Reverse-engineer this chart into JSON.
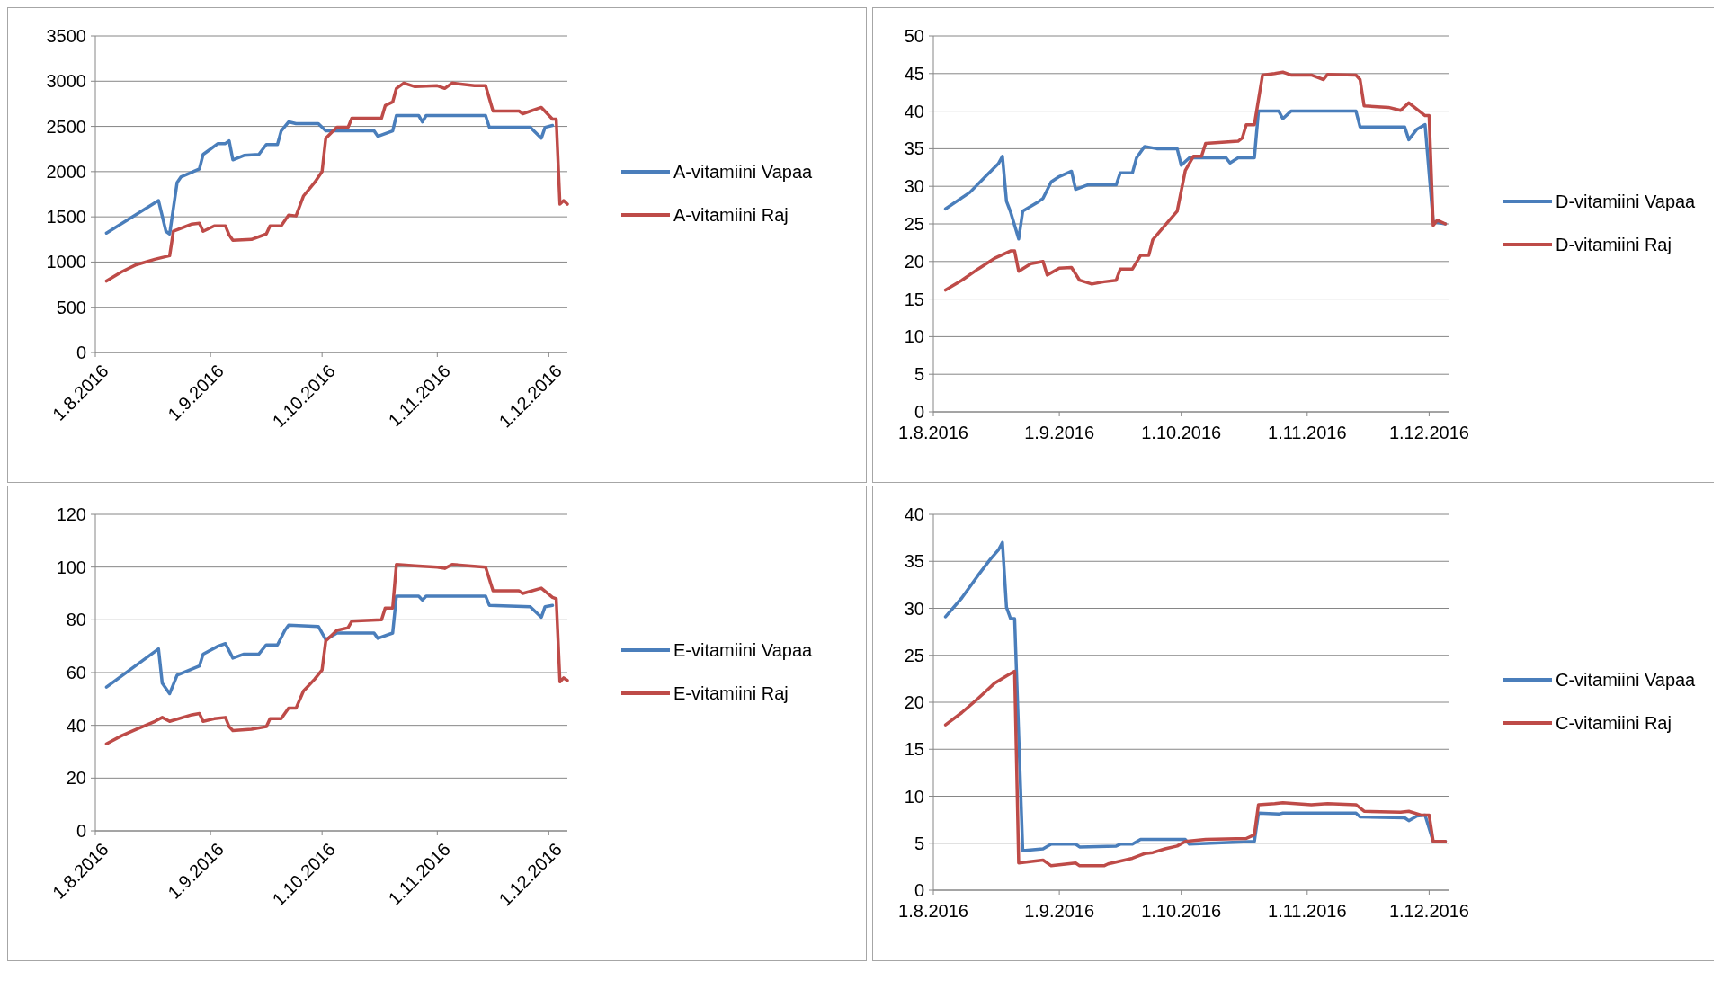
{
  "chart_data": [
    {
      "type": "line",
      "xlim": [
        "2016-08-01",
        "2016-12-06"
      ],
      "xticks": [
        {
          "value": "2016-08-01",
          "label": "1.8.2016"
        },
        {
          "value": "2016-09-01",
          "label": "1.9.2016"
        },
        {
          "value": "2016-10-01",
          "label": "1.10.2016"
        },
        {
          "value": "2016-11-01",
          "label": "1.11.2016"
        },
        {
          "value": "2016-12-01",
          "label": "1.12.2016"
        }
      ],
      "ylim": [
        0,
        3500
      ],
      "yticks": [
        0,
        500,
        1000,
        1500,
        2000,
        2500,
        3000,
        3500
      ],
      "grid": "y",
      "legend": "right",
      "series": [
        {
          "name": "A-vitamiini Vapaa",
          "color": "#4a7ebb",
          "x": [
            "2016-08-04",
            "2016-08-18",
            "2016-08-20",
            "2016-08-21",
            "2016-08-23",
            "2016-08-24",
            "2016-08-29",
            "2016-08-30",
            "2016-09-01",
            "2016-09-03",
            "2016-09-05",
            "2016-09-06",
            "2016-09-07",
            "2016-09-10",
            "2016-09-14",
            "2016-09-16",
            "2016-09-19",
            "2016-09-20",
            "2016-09-22",
            "2016-09-24",
            "2016-09-30",
            "2016-10-02",
            "2016-10-11",
            "2016-10-15",
            "2016-10-16",
            "2016-10-20",
            "2016-10-21",
            "2016-10-27",
            "2016-10-28",
            "2016-10-29",
            "2016-11-14",
            "2016-11-15",
            "2016-11-26",
            "2016-11-29",
            "2016-11-30",
            "2016-12-02"
          ],
          "values": [
            1320,
            1680,
            1340,
            1310,
            1880,
            1940,
            2030,
            2190,
            2250,
            2310,
            2310,
            2340,
            2130,
            2180,
            2190,
            2300,
            2300,
            2450,
            2550,
            2530,
            2530,
            2450,
            2450,
            2450,
            2390,
            2450,
            2620,
            2620,
            2550,
            2620,
            2620,
            2490,
            2490,
            2370,
            2490,
            2510
          ]
        },
        {
          "name": "A-vitamiini Raj",
          "color": "#be4b48",
          "x": [
            "2016-08-04",
            "2016-08-08",
            "2016-08-12",
            "2016-08-17",
            "2016-08-21",
            "2016-08-22",
            "2016-08-27",
            "2016-08-29",
            "2016-08-30",
            "2016-09-02",
            "2016-09-05",
            "2016-09-06",
            "2016-09-07",
            "2016-09-12",
            "2016-09-16",
            "2016-09-17",
            "2016-09-20",
            "2016-09-22",
            "2016-09-24",
            "2016-09-26",
            "2016-09-29",
            "2016-10-01",
            "2016-10-02",
            "2016-10-05",
            "2016-10-08",
            "2016-10-09",
            "2016-10-17",
            "2016-10-18",
            "2016-10-20",
            "2016-10-21",
            "2016-10-23",
            "2016-10-26",
            "2016-11-01",
            "2016-11-03",
            "2016-11-05",
            "2016-11-11",
            "2016-11-14",
            "2016-11-16",
            "2016-11-23",
            "2016-11-24",
            "2016-11-29",
            "2016-12-02",
            "2016-12-03",
            "2016-12-04",
            "2016-12-05",
            "2016-12-06"
          ],
          "values": [
            790,
            890,
            970,
            1030,
            1070,
            1340,
            1420,
            1430,
            1340,
            1400,
            1400,
            1300,
            1240,
            1250,
            1310,
            1400,
            1400,
            1520,
            1510,
            1730,
            1880,
            2000,
            2370,
            2490,
            2490,
            2590,
            2590,
            2730,
            2770,
            2920,
            2980,
            2940,
            2950,
            2920,
            2980,
            2950,
            2950,
            2670,
            2670,
            2640,
            2710,
            2580,
            2580,
            1640,
            1680,
            1640
          ]
        }
      ]
    },
    {
      "type": "line",
      "xlim": [
        "2016-08-01",
        "2016-12-06"
      ],
      "xticks": [
        {
          "value": "2016-08-01",
          "label": "1.8.2016"
        },
        {
          "value": "2016-09-01",
          "label": "1.9.2016"
        },
        {
          "value": "2016-10-01",
          "label": "1.10.2016"
        },
        {
          "value": "2016-11-01",
          "label": "1.11.2016"
        },
        {
          "value": "2016-12-01",
          "label": "1.12.2016"
        }
      ],
      "ylim": [
        0,
        50
      ],
      "yticks": [
        0,
        5,
        10,
        15,
        20,
        25,
        30,
        35,
        40,
        45,
        50
      ],
      "grid": "y",
      "legend": "right",
      "series": [
        {
          "name": "D-vitamiini Vapaa",
          "color": "#4a7ebb",
          "x": [
            "2016-08-04",
            "2016-08-10",
            "2016-08-14",
            "2016-08-17",
            "2016-08-18",
            "2016-08-19",
            "2016-08-20",
            "2016-08-22",
            "2016-08-23",
            "2016-08-27",
            "2016-08-28",
            "2016-08-30",
            "2016-09-01",
            "2016-09-04",
            "2016-09-05",
            "2016-09-08",
            "2016-09-15",
            "2016-09-16",
            "2016-09-19",
            "2016-09-20",
            "2016-09-22",
            "2016-09-25",
            "2016-09-30",
            "2016-10-01",
            "2016-10-03",
            "2016-10-12",
            "2016-10-13",
            "2016-10-15",
            "2016-10-19",
            "2016-10-20",
            "2016-10-25",
            "2016-10-26",
            "2016-10-28",
            "2016-11-13",
            "2016-11-14",
            "2016-11-25",
            "2016-11-26",
            "2016-11-28",
            "2016-11-30",
            "2016-12-02",
            "2016-12-05"
          ],
          "values": [
            27,
            29.2,
            31.4,
            33,
            34,
            28,
            26.6,
            23,
            26.7,
            28,
            28.4,
            30.6,
            31.3,
            32,
            29.6,
            30.2,
            30.2,
            31.8,
            31.8,
            33.8,
            35.3,
            35,
            35,
            32.8,
            33.8,
            33.8,
            33.1,
            33.8,
            33.8,
            40,
            40,
            39,
            40,
            40,
            37.9,
            37.9,
            36.2,
            37.6,
            38.2,
            25.3,
            25
          ]
        },
        {
          "name": "D-vitamiini Raj",
          "color": "#be4b48",
          "x": [
            "2016-08-04",
            "2016-08-08",
            "2016-08-12",
            "2016-08-16",
            "2016-08-20",
            "2016-08-21",
            "2016-08-22",
            "2016-08-25",
            "2016-08-28",
            "2016-08-29",
            "2016-09-01",
            "2016-09-04",
            "2016-09-06",
            "2016-09-09",
            "2016-09-12",
            "2016-09-15",
            "2016-09-16",
            "2016-09-19",
            "2016-09-21",
            "2016-09-23",
            "2016-09-24",
            "2016-09-27",
            "2016-09-30",
            "2016-10-02",
            "2016-10-04",
            "2016-10-06",
            "2016-10-07",
            "2016-10-15",
            "2016-10-16",
            "2016-10-17",
            "2016-10-19",
            "2016-10-21",
            "2016-10-24",
            "2016-10-26",
            "2016-10-28",
            "2016-11-02",
            "2016-11-05",
            "2016-11-06",
            "2016-11-13",
            "2016-11-14",
            "2016-11-15",
            "2016-11-21",
            "2016-11-24",
            "2016-11-26",
            "2016-11-30",
            "2016-12-01",
            "2016-12-02",
            "2016-12-03",
            "2016-12-05"
          ],
          "values": [
            16.2,
            17.5,
            19,
            20.4,
            21.4,
            21.4,
            18.7,
            19.7,
            20,
            18.2,
            19.1,
            19.2,
            17.5,
            17,
            17.3,
            17.5,
            19,
            19,
            20.8,
            20.8,
            22.9,
            24.8,
            26.7,
            32.1,
            34,
            34,
            35.7,
            36,
            36.4,
            38.2,
            38.2,
            44.8,
            45,
            45.2,
            44.8,
            44.8,
            44.2,
            44.9,
            44.8,
            44.2,
            40.7,
            40.5,
            40.1,
            41.1,
            39.4,
            39.4,
            24.8,
            25.5,
            25
          ]
        }
      ]
    },
    {
      "type": "line",
      "xlim": [
        "2016-08-01",
        "2016-12-06"
      ],
      "xticks": [
        {
          "value": "2016-08-01",
          "label": "1.8.2016"
        },
        {
          "value": "2016-09-01",
          "label": "1.9.2016"
        },
        {
          "value": "2016-10-01",
          "label": "1.10.2016"
        },
        {
          "value": "2016-11-01",
          "label": "1.11.2016"
        },
        {
          "value": "2016-12-01",
          "label": "1.12.2016"
        }
      ],
      "ylim": [
        0,
        120
      ],
      "yticks": [
        0,
        20,
        40,
        60,
        80,
        100,
        120
      ],
      "grid": "y",
      "legend": "right",
      "series": [
        {
          "name": "E-vitamiini Vapaa",
          "color": "#4a7ebb",
          "x": [
            "2016-08-04",
            "2016-08-18",
            "2016-08-19",
            "2016-08-21",
            "2016-08-23",
            "2016-08-29",
            "2016-08-30",
            "2016-09-03",
            "2016-09-05",
            "2016-09-07",
            "2016-09-10",
            "2016-09-14",
            "2016-09-16",
            "2016-09-19",
            "2016-09-21",
            "2016-09-22",
            "2016-09-30",
            "2016-10-02",
            "2016-10-05",
            "2016-10-15",
            "2016-10-16",
            "2016-10-20",
            "2016-10-21",
            "2016-10-27",
            "2016-10-28",
            "2016-10-29",
            "2016-11-14",
            "2016-11-15",
            "2016-11-26",
            "2016-11-29",
            "2016-11-30",
            "2016-12-02"
          ],
          "values": [
            54.5,
            69,
            56,
            52,
            59,
            62.5,
            67,
            70,
            71,
            65.5,
            67,
            67,
            70.5,
            70.5,
            76,
            78,
            77.5,
            72.5,
            75,
            75,
            73,
            75,
            89,
            89,
            87.5,
            89,
            89,
            85.5,
            85,
            81,
            85,
            85.5
          ]
        },
        {
          "name": "E-vitamiini Raj",
          "color": "#be4b48",
          "x": [
            "2016-08-04",
            "2016-08-08",
            "2016-08-12",
            "2016-08-17",
            "2016-08-19",
            "2016-08-21",
            "2016-08-27",
            "2016-08-29",
            "2016-08-30",
            "2016-09-02",
            "2016-09-05",
            "2016-09-06",
            "2016-09-07",
            "2016-09-12",
            "2016-09-16",
            "2016-09-17",
            "2016-09-20",
            "2016-09-22",
            "2016-09-24",
            "2016-09-26",
            "2016-09-29",
            "2016-10-01",
            "2016-10-02",
            "2016-10-05",
            "2016-10-08",
            "2016-10-09",
            "2016-10-17",
            "2016-10-18",
            "2016-10-20",
            "2016-10-21",
            "2016-10-26",
            "2016-11-01",
            "2016-11-03",
            "2016-11-05",
            "2016-11-14",
            "2016-11-16",
            "2016-11-23",
            "2016-11-24",
            "2016-11-29",
            "2016-12-02",
            "2016-12-03",
            "2016-12-04",
            "2016-12-05",
            "2016-12-06"
          ],
          "values": [
            33,
            36,
            38.5,
            41.5,
            43,
            41.5,
            44,
            44.5,
            41.5,
            42.5,
            43,
            39.5,
            38,
            38.5,
            39.5,
            42.5,
            42.5,
            46.5,
            46.5,
            53,
            57.5,
            61,
            72,
            76,
            77,
            79.5,
            80,
            84.5,
            84.5,
            101,
            100.5,
            100,
            99.5,
            101,
            100,
            91,
            91,
            90,
            92,
            88.5,
            88,
            56.5,
            58,
            57
          ]
        }
      ]
    },
    {
      "type": "line",
      "xlim": [
        "2016-08-01",
        "2016-12-06"
      ],
      "xticks": [
        {
          "value": "2016-08-01",
          "label": "1.8.2016"
        },
        {
          "value": "2016-09-01",
          "label": "1.9.2016"
        },
        {
          "value": "2016-10-01",
          "label": "1.10.2016"
        },
        {
          "value": "2016-11-01",
          "label": "1.11.2016"
        },
        {
          "value": "2016-12-01",
          "label": "1.12.2016"
        }
      ],
      "ylim": [
        0,
        40
      ],
      "yticks": [
        0,
        5,
        10,
        15,
        20,
        25,
        30,
        35,
        40
      ],
      "grid": "y",
      "legend": "right",
      "series": [
        {
          "name": "C-vitamiini Vapaa",
          "color": "#4a7ebb",
          "x": [
            "2016-08-04",
            "2016-08-08",
            "2016-08-12",
            "2016-08-15",
            "2016-08-17",
            "2016-08-18",
            "2016-08-19",
            "2016-08-20",
            "2016-08-21",
            "2016-08-23",
            "2016-08-28",
            "2016-08-30",
            "2016-09-05",
            "2016-09-06",
            "2016-09-15",
            "2016-09-16",
            "2016-09-19",
            "2016-09-21",
            "2016-10-02",
            "2016-10-03",
            "2016-10-19",
            "2016-10-20",
            "2016-10-25",
            "2016-10-26",
            "2016-11-13",
            "2016-11-14",
            "2016-11-25",
            "2016-11-26",
            "2016-11-28",
            "2016-11-30",
            "2016-12-02",
            "2016-12-05"
          ],
          "values": [
            29.1,
            31.1,
            33.5,
            35.2,
            36.2,
            37,
            30.1,
            28.9,
            28.9,
            4.2,
            4.4,
            4.9,
            4.9,
            4.6,
            4.7,
            4.9,
            4.9,
            5.4,
            5.4,
            4.9,
            5.2,
            8.2,
            8.1,
            8.2,
            8.2,
            7.8,
            7.7,
            7.4,
            7.9,
            8,
            5.2,
            5.2
          ]
        },
        {
          "name": "C-vitamiini Raj",
          "color": "#be4b48",
          "x": [
            "2016-08-04",
            "2016-08-08",
            "2016-08-12",
            "2016-08-14",
            "2016-08-16",
            "2016-08-19",
            "2016-08-21",
            "2016-08-22",
            "2016-08-28",
            "2016-08-30",
            "2016-09-05",
            "2016-09-06",
            "2016-09-12",
            "2016-09-13",
            "2016-09-19",
            "2016-09-22",
            "2016-09-24",
            "2016-09-27",
            "2016-09-30",
            "2016-10-02",
            "2016-10-07",
            "2016-10-17",
            "2016-10-19",
            "2016-10-20",
            "2016-10-24",
            "2016-10-26",
            "2016-11-02",
            "2016-11-06",
            "2016-11-13",
            "2016-11-15",
            "2016-11-24",
            "2016-11-26",
            "2016-11-29",
            "2016-12-01",
            "2016-12-02",
            "2016-12-05"
          ],
          "values": [
            17.6,
            18.9,
            20.4,
            21.2,
            22,
            22.8,
            23.3,
            2.9,
            3.2,
            2.6,
            2.9,
            2.6,
            2.6,
            2.8,
            3.4,
            3.9,
            4,
            4.4,
            4.7,
            5.2,
            5.4,
            5.5,
            5.9,
            9.1,
            9.2,
            9.3,
            9.1,
            9.2,
            9.1,
            8.4,
            8.3,
            8.4,
            8,
            8,
            5.2,
            5.2
          ]
        }
      ]
    }
  ]
}
